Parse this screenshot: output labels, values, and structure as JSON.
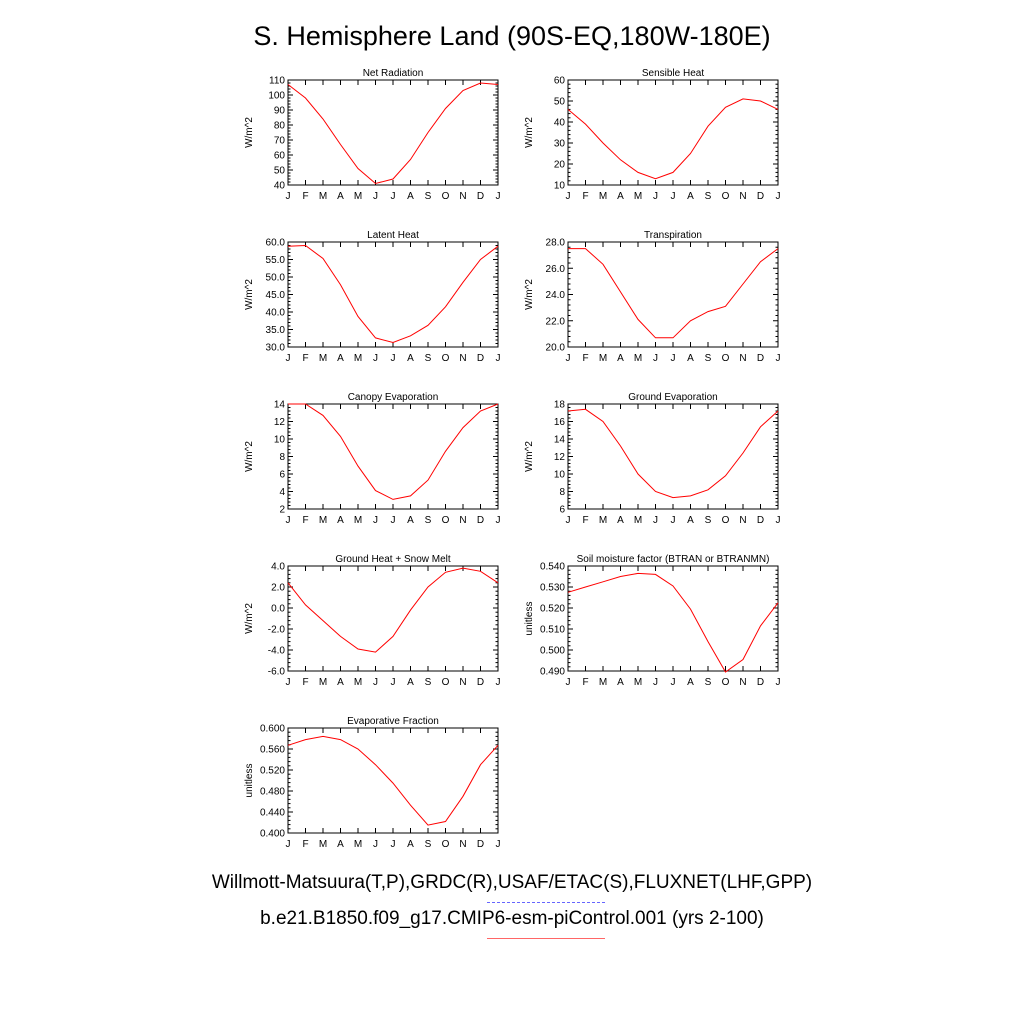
{
  "title": "S. Hemisphere Land (90S-EQ,180W-180E)",
  "month_ticks": [
    "J",
    "F",
    "M",
    "A",
    "M",
    "J",
    "J",
    "A",
    "S",
    "O",
    "N",
    "D",
    "J"
  ],
  "legend": [
    {
      "label": "Willmott-Matsuura(T,P),GRDC(R),USAF/ETAC(S),FLUXNET(LHF,GPP)",
      "color": "#6666ff",
      "style": "dashed"
    },
    {
      "label": "b.e21.B1850.f09_g17.CMIP6-esm-piControl.001 (yrs 2-100)",
      "color": "#ff6666",
      "style": "solid"
    }
  ],
  "series_color": "#ff0000",
  "chart_data": [
    {
      "type": "line",
      "title": "Net Radiation",
      "ylabel": "W/m^2",
      "ylim": [
        40,
        110
      ],
      "yticks": [
        "40",
        "50",
        "60",
        "70",
        "80",
        "90",
        "100",
        "110"
      ],
      "yminor": 1,
      "values": [
        107,
        98,
        84,
        67,
        51,
        41,
        44,
        57,
        75,
        91,
        103,
        108,
        107
      ]
    },
    {
      "type": "line",
      "title": "Sensible Heat",
      "ylabel": "W/m^2",
      "ylim": [
        10,
        60
      ],
      "yticks": [
        "10",
        "20",
        "30",
        "40",
        "50",
        "60"
      ],
      "yminor": 1,
      "values": [
        46,
        39,
        30,
        22,
        16,
        13,
        16,
        25,
        38,
        47,
        51,
        50,
        46
      ]
    },
    {
      "type": "line",
      "title": "Latent Heat",
      "ylabel": "W/m^2",
      "ylim": [
        30,
        60
      ],
      "yticks": [
        "30.0",
        "35.0",
        "40.0",
        "45.0",
        "50.0",
        "55.0",
        "60.0"
      ],
      "yminor": 1,
      "values": [
        58.8,
        59.0,
        55.3,
        47.8,
        38.7,
        32.6,
        31.3,
        33.2,
        36.2,
        41.5,
        48.5,
        55.0,
        58.8
      ]
    },
    {
      "type": "line",
      "title": "Transpiration",
      "ylabel": "W/m^2",
      "ylim": [
        20,
        28
      ],
      "yticks": [
        "20.0",
        "22.0",
        "24.0",
        "26.0",
        "28.0"
      ],
      "yminor": 1,
      "values": [
        27.5,
        27.5,
        26.3,
        24.2,
        22.1,
        20.7,
        20.7,
        22.0,
        22.7,
        23.1,
        24.8,
        26.5,
        27.5
      ]
    },
    {
      "type": "line",
      "title": "Canopy Evaporation",
      "ylabel": "W/m^2",
      "ylim": [
        2,
        14
      ],
      "yticks": [
        "2",
        "4",
        "6",
        "8",
        "10",
        "12",
        "14"
      ],
      "yminor": 1,
      "values": [
        14.0,
        14.0,
        12.7,
        10.3,
        6.9,
        4.1,
        3.1,
        3.5,
        5.3,
        8.6,
        11.3,
        13.2,
        14.0
      ]
    },
    {
      "type": "line",
      "title": "Ground Evaporation",
      "ylabel": "W/m^2",
      "ylim": [
        6,
        18
      ],
      "yticks": [
        "6",
        "8",
        "10",
        "12",
        "14",
        "16",
        "18"
      ],
      "yminor": 1,
      "values": [
        17.2,
        17.4,
        16.0,
        13.2,
        10.0,
        8.0,
        7.3,
        7.5,
        8.2,
        9.8,
        12.4,
        15.4,
        17.2
      ]
    },
    {
      "type": "line",
      "title": "Ground Heat + Snow Melt",
      "ylabel": "W/m^2",
      "ylim": [
        -6,
        4
      ],
      "yticks": [
        "-6.0",
        "-4.0",
        "-2.0",
        "0.0",
        "2.0",
        "4.0"
      ],
      "yminor": 1,
      "values": [
        2.4,
        0.3,
        -1.2,
        -2.7,
        -3.9,
        -4.2,
        -2.7,
        -0.2,
        2.0,
        3.4,
        3.8,
        3.5,
        2.4
      ]
    },
    {
      "type": "line",
      "title": "Soil moisture factor (BTRAN or BTRANMN)",
      "ylabel": "unitless",
      "ylim": [
        0.49,
        0.54
      ],
      "yticks": [
        "0.490",
        "0.500",
        "0.510",
        "0.520",
        "0.530",
        "0.540"
      ],
      "yminor": 1,
      "values": [
        0.5275,
        0.53,
        0.5325,
        0.535,
        0.5365,
        0.536,
        0.5305,
        0.5195,
        0.504,
        0.4895,
        0.4955,
        0.5115,
        0.5225
      ]
    },
    {
      "type": "line",
      "title": "Evaporative Fraction",
      "ylabel": "unitless",
      "ylim": [
        0.4,
        0.6
      ],
      "yticks": [
        "0.400",
        "0.440",
        "0.480",
        "0.520",
        "0.560",
        "0.600"
      ],
      "yminor": 1,
      "values": [
        0.567,
        0.578,
        0.584,
        0.578,
        0.56,
        0.53,
        0.495,
        0.453,
        0.415,
        0.422,
        0.47,
        0.53,
        0.567
      ]
    }
  ]
}
